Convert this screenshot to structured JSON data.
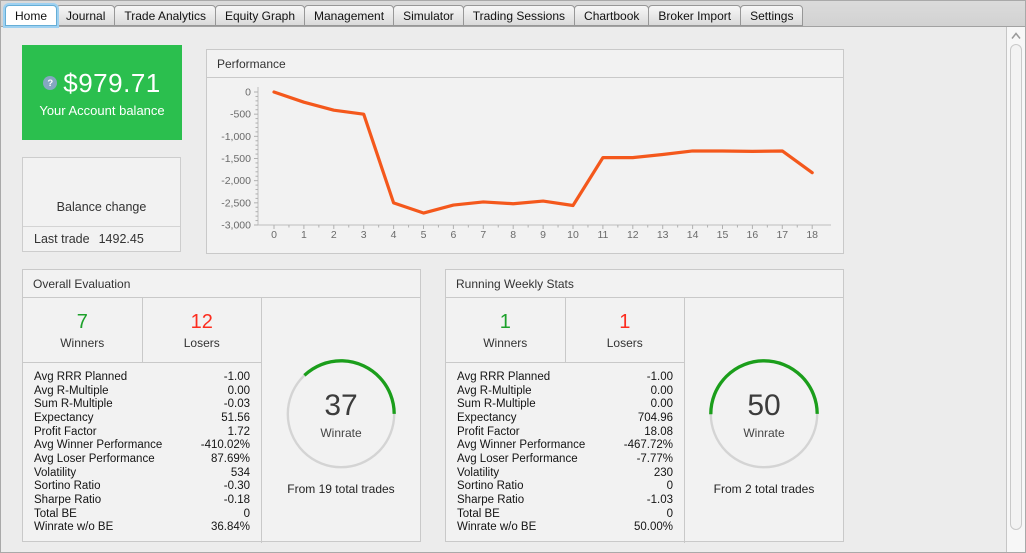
{
  "tabs": [
    {
      "label": "Home",
      "active": true
    },
    {
      "label": "Journal",
      "active": false
    },
    {
      "label": "Trade Analytics",
      "active": false
    },
    {
      "label": "Equity Graph",
      "active": false
    },
    {
      "label": "Management",
      "active": false
    },
    {
      "label": "Simulator",
      "active": false
    },
    {
      "label": "Trading Sessions",
      "active": false
    },
    {
      "label": "Chartbook",
      "active": false
    },
    {
      "label": "Broker Import",
      "active": false
    },
    {
      "label": "Settings",
      "active": false
    }
  ],
  "balance_card": {
    "help_icon": "?",
    "amount": "$979.71",
    "caption": "Your Account balance"
  },
  "balance_change_card": {
    "title": "Balance change",
    "last_trade_label": "Last trade",
    "last_trade_value": "1492.45"
  },
  "performance_panel": {
    "title": "Performance"
  },
  "chart_data": {
    "type": "line",
    "title": "Performance",
    "x": [
      0,
      1,
      2,
      3,
      4,
      5,
      6,
      7,
      8,
      9,
      10,
      11,
      12,
      13,
      14,
      15,
      16,
      17,
      18
    ],
    "values": [
      0,
      -230,
      -410,
      -500,
      -2500,
      -2730,
      -2550,
      -2480,
      -2520,
      -2460,
      -2560,
      -1480,
      -1480,
      -1410,
      -1330,
      -1330,
      -1340,
      -1330,
      -1820
    ],
    "xlabel": "",
    "ylabel": "",
    "xlim": [
      0,
      18
    ],
    "ylim": [
      -3000,
      0
    ],
    "yticks": [
      0,
      -500,
      -1000,
      -1500,
      -2000,
      -2500,
      -3000
    ],
    "ytick_labels": [
      "0",
      "-500",
      "-1,000",
      "-1,500",
      "-2,000",
      "-2,500",
      "-3,000"
    ],
    "grid": false,
    "legend": false,
    "series_color": "#f4581c"
  },
  "panels": [
    {
      "title": "Overall Evaluation",
      "winners": {
        "value": "7",
        "label": "Winners"
      },
      "losers": {
        "value": "12",
        "label": "Losers"
      },
      "stats": [
        {
          "label": "Avg RRR Planned",
          "value": "-1.00"
        },
        {
          "label": "Avg R-Multiple",
          "value": "0.00"
        },
        {
          "label": "Sum R-Multiple",
          "value": "-0.03"
        },
        {
          "label": "Expectancy",
          "value": "51.56"
        },
        {
          "label": "Profit Factor",
          "value": "1.72"
        },
        {
          "label": "Avg Winner Performance",
          "value": "-410.02%"
        },
        {
          "label": "Avg Loser Performance",
          "value": "87.69%"
        },
        {
          "label": "Volatility",
          "value": "534"
        },
        {
          "label": "Sortino Ratio",
          "value": "-0.30"
        },
        {
          "label": "Sharpe Ratio",
          "value": "-0.18"
        },
        {
          "label": "Total BE",
          "value": "0"
        },
        {
          "label": "Winrate w/o BE",
          "value": "36.84%"
        }
      ],
      "gauge": {
        "value": 37,
        "label": "Winrate",
        "caption": "From 19 total trades"
      }
    },
    {
      "title": "Running Weekly Stats",
      "winners": {
        "value": "1",
        "label": "Winners"
      },
      "losers": {
        "value": "1",
        "label": "Losers"
      },
      "stats": [
        {
          "label": "Avg RRR Planned",
          "value": "-1.00"
        },
        {
          "label": "Avg R-Multiple",
          "value": "0.00"
        },
        {
          "label": "Sum R-Multiple",
          "value": "0.00"
        },
        {
          "label": "Expectancy",
          "value": "704.96"
        },
        {
          "label": "Profit Factor",
          "value": "18.08"
        },
        {
          "label": "Avg Winner Performance",
          "value": "-467.72%"
        },
        {
          "label": "Avg Loser Performance",
          "value": "-7.77%"
        },
        {
          "label": "Volatility",
          "value": "230"
        },
        {
          "label": "Sortino Ratio",
          "value": "0"
        },
        {
          "label": "Sharpe Ratio",
          "value": "-1.03"
        },
        {
          "label": "Total BE",
          "value": "0"
        },
        {
          "label": "Winrate w/o BE",
          "value": "50.00%"
        }
      ],
      "gauge": {
        "value": 50,
        "label": "Winrate",
        "caption": "From 2 total trades"
      }
    }
  ],
  "colors": {
    "balance_green": "#2bbf4e",
    "positive": "#1da12b",
    "negative": "#fc2d1f",
    "chart_line": "#f4581c",
    "gauge_green": "#1b9e1b",
    "tab_focus": "#9ed1f1"
  }
}
